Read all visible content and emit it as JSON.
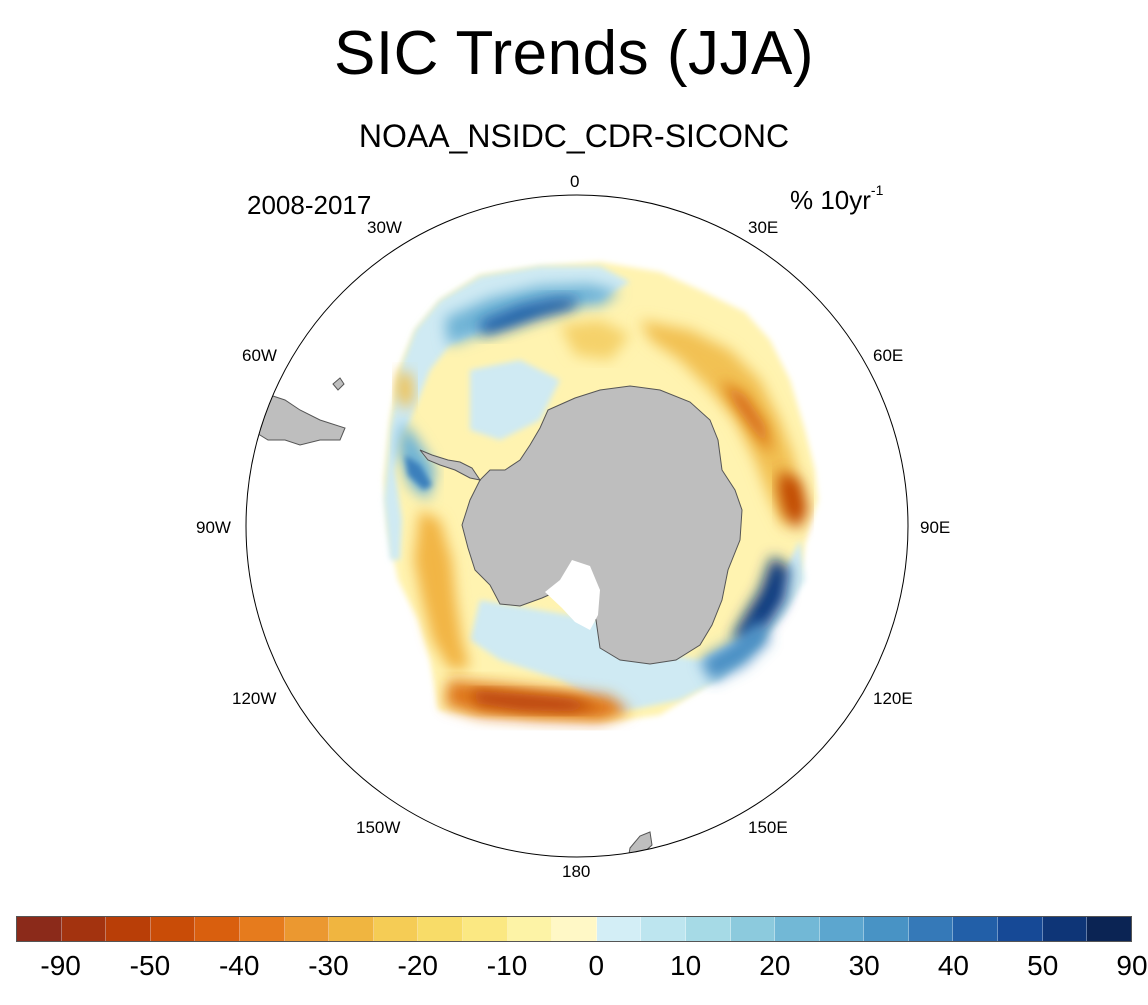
{
  "title": "SIC Trends (JJA)",
  "subtitle": "NOAA_NSIDC_CDR-SICONC",
  "period": "2008-2017",
  "units_main": "% 10yr",
  "units_exp": "-1",
  "longitude_labels": {
    "lon_0": "0",
    "lon_30e": "30E",
    "lon_60e": "60E",
    "lon_90e": "90E",
    "lon_120e": "120E",
    "lon_150e": "150E",
    "lon_180": "180",
    "lon_150w": "150W",
    "lon_120w": "120W",
    "lon_90w": "90W",
    "lon_60w": "60W",
    "lon_30w": "30W"
  },
  "colorbar": {
    "colors": [
      "#8b2a1a",
      "#a3330f",
      "#b93e07",
      "#c94c07",
      "#d95f0e",
      "#e67b1d",
      "#eb9830",
      "#f0b540",
      "#f5cc55",
      "#f8dc68",
      "#fbe882",
      "#fdf3a6",
      "#fff8c6",
      "#d3eef6",
      "#bde5ef",
      "#a6dae6",
      "#8ccadd",
      "#72b8d6",
      "#5ca6cf",
      "#4893c5",
      "#3579b8",
      "#225fa8",
      "#164996",
      "#0e3577",
      "#0b2454"
    ],
    "tick_labels": [
      "-90",
      "-50",
      "-40",
      "-30",
      "-20",
      "-10",
      "0",
      "10",
      "20",
      "30",
      "40",
      "50",
      "90"
    ]
  },
  "legend": {
    "land": "#bebebe",
    "no_trend": "#ffffff",
    "sea_ice_decrease": "#c94c07",
    "sea_ice_increase": "#225fa8"
  }
}
